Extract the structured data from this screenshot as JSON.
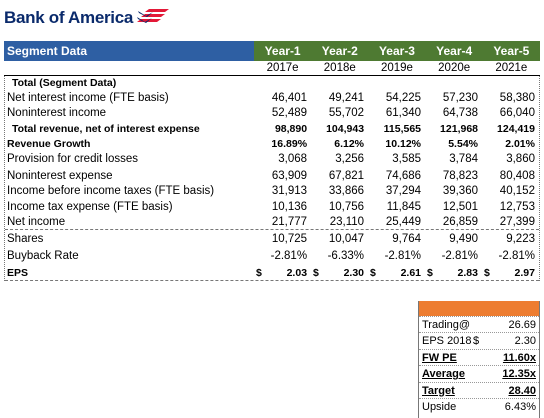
{
  "logo": {
    "text": "Bank of America",
    "brand_red": "#e31837",
    "brand_blue": "#0a2a6b"
  },
  "header": {
    "title": "Segment Data",
    "years": [
      "Year-1",
      "Year-2",
      "Year-3",
      "Year-4",
      "Year-5"
    ],
    "fiscal": [
      "2017e",
      "2018e",
      "2019e",
      "2020e",
      "2021e"
    ],
    "title_color": "#2e5fa3",
    "years_color": "#4e7a32"
  },
  "rows": [
    {
      "label": "Total (Segment Data)",
      "values": [
        "",
        "",
        "",
        "",
        ""
      ]
    },
    {
      "label": "Net interest income (FTE basis)",
      "values": [
        "46,401",
        "49,241",
        "54,225",
        "57,230",
        "58,380"
      ]
    },
    {
      "label": "Noninterest income",
      "values": [
        "52,489",
        "55,702",
        "61,340",
        "64,738",
        "66,040"
      ]
    },
    {
      "label": "Total revenue, net of interest expense",
      "values": [
        "98,890",
        "104,943",
        "115,565",
        "121,968",
        "124,419"
      ]
    },
    {
      "label": "Revenue Growth",
      "values": [
        "16.89%",
        "6.12%",
        "10.12%",
        "5.54%",
        "2.01%"
      ]
    },
    {
      "label": "Provision for credit losses",
      "values": [
        "3,068",
        "3,256",
        "3,585",
        "3,784",
        "3,860"
      ]
    },
    {
      "label": "Noninterest expense",
      "values": [
        "63,909",
        "67,821",
        "74,686",
        "78,823",
        "80,408"
      ]
    },
    {
      "label": "Income before income taxes (FTE basis)",
      "values": [
        "31,913",
        "33,866",
        "37,294",
        "39,360",
        "40,152"
      ]
    },
    {
      "label": "Income tax expense (FTE basis)",
      "values": [
        "10,136",
        "10,756",
        "11,845",
        "12,501",
        "12,753"
      ]
    },
    {
      "label": "Net income",
      "values": [
        "21,777",
        "23,110",
        "25,449",
        "26,859",
        "27,399"
      ]
    },
    {
      "label": "Shares",
      "values": [
        "10,725",
        "10,047",
        "9,764",
        "9,490",
        "9,223"
      ]
    },
    {
      "label": "Buyback Rate",
      "values": [
        "-2.81%",
        "-6.33%",
        "-2.81%",
        "-2.81%",
        "-2.81%"
      ]
    }
  ],
  "eps": {
    "label": "EPS",
    "currency": "$",
    "values": [
      "2.03",
      "2.30",
      "2.61",
      "2.83",
      "2.97"
    ]
  },
  "valuation": {
    "header_color": "#ed7d31",
    "rows": [
      {
        "label": "Trading@",
        "symbol": "",
        "value": "26.69"
      },
      {
        "label": "EPS 2018",
        "symbol": "$",
        "value": "2.30"
      },
      {
        "label": "FW PE",
        "symbol": "",
        "value": "11.60x"
      },
      {
        "label": "Average",
        "symbol": "",
        "value": "12.35x"
      },
      {
        "label": "Target",
        "symbol": "",
        "value": "28.40"
      },
      {
        "label": "Upside",
        "symbol": "",
        "value": "6.43%"
      }
    ]
  }
}
